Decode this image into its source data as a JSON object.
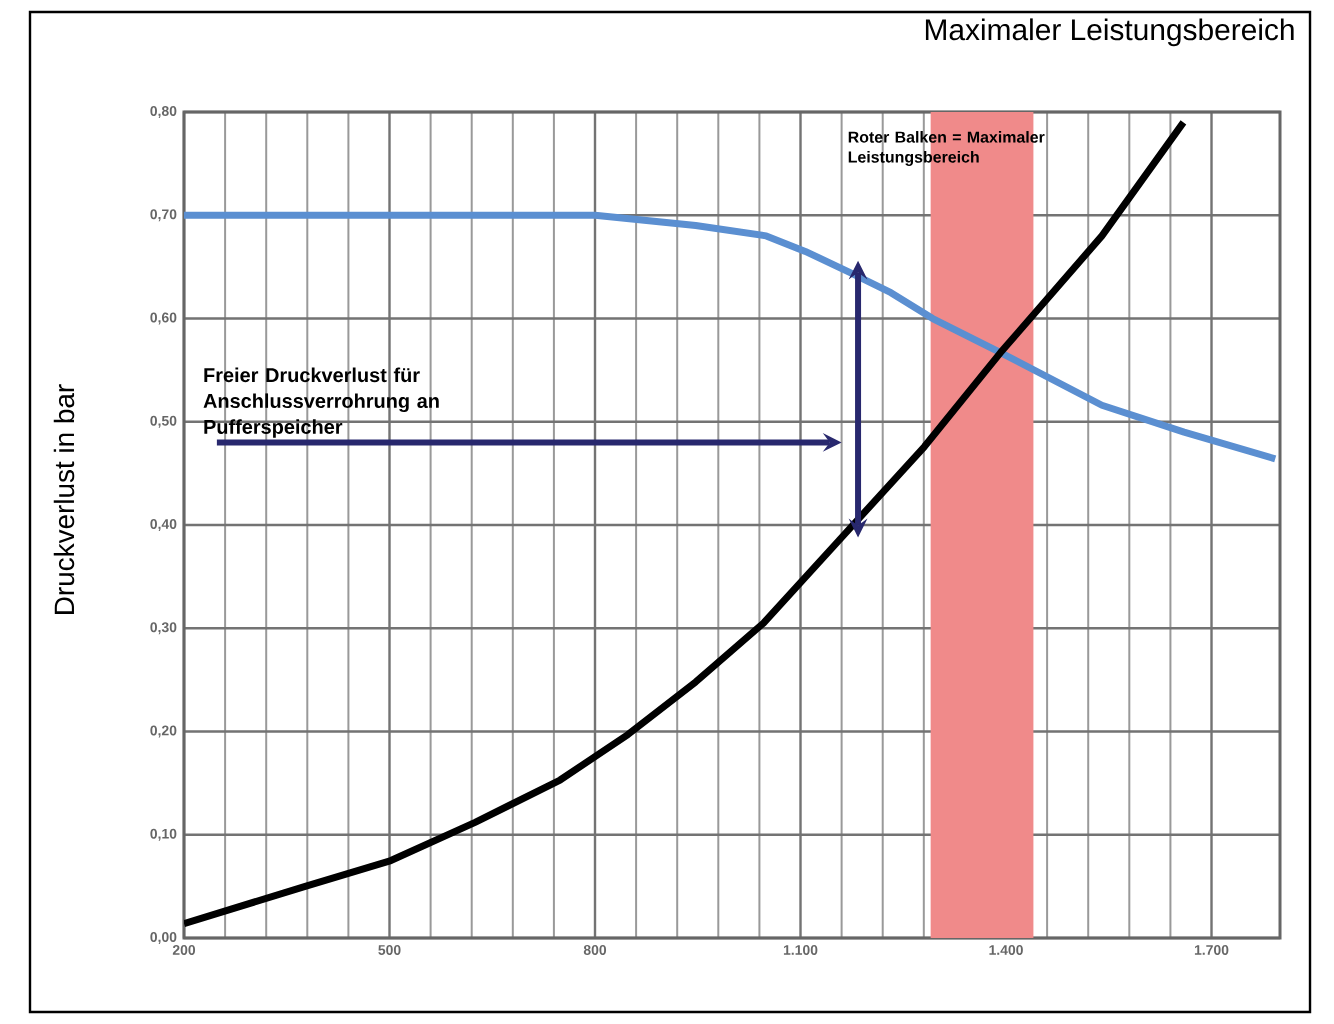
{
  "chart_data": {
    "type": "line",
    "title": "Maximaler Leistungsbereich",
    "ylabel": "Druckverlust in bar",
    "xlim": [
      200,
      1800
    ],
    "ylim": [
      0,
      0.8
    ],
    "xticks": [
      200,
      500,
      800,
      {
        "value": 1100,
        "label": "1.100"
      },
      {
        "value": 1400,
        "label": "1.400"
      },
      {
        "value": 1700,
        "label": "1.700"
      }
    ],
    "yticks": [
      {
        "value": 0,
        "label": "0,00"
      },
      {
        "value": 0.1,
        "label": "0,10"
      },
      {
        "value": 0.2,
        "label": "0,20"
      },
      {
        "value": 0.3,
        "label": "0,30"
      },
      {
        "value": 0.4,
        "label": "0,40"
      },
      {
        "value": 0.5,
        "label": "0,50"
      },
      {
        "value": 0.6,
        "label": "0,60"
      },
      {
        "value": 0.7,
        "label": "0,70"
      },
      {
        "value": 0.8,
        "label": "0,80"
      }
    ],
    "grid": true,
    "marker": "none",
    "line_style": "solid",
    "series": [
      {
        "color": "#5b8fd1",
        "x": [
          200,
          400,
          600,
          800,
          947,
          1050,
          1107,
          1171,
          1232,
          1293,
          1392,
          1540,
          1660,
          1793
        ],
        "values": [
          0.7,
          0.7,
          0.7,
          0.7,
          0.69,
          0.68,
          0.665,
          0.645,
          0.625,
          0.6,
          0.567,
          0.516,
          0.49,
          0.464
        ]
      },
      {
        "color": "#000000",
        "x": [
          200,
          377,
          502,
          625,
          749,
          848,
          947,
          1046,
          1156,
          1281,
          1392,
          1540,
          1659
        ],
        "values": [
          0.014,
          0.05,
          0.075,
          0.112,
          0.153,
          0.197,
          0.248,
          0.305,
          0.385,
          0.476,
          0.567,
          0.68,
          0.79
        ]
      }
    ],
    "bands": [
      {
        "axis": "x",
        "from": 1290,
        "to": 1440,
        "label": "Roter Balken = Maximaler Leistungsbereich",
        "color": "#f08a8a"
      }
    ],
    "annotations": [
      "Freier Druckverlust für Anschlussverrohrung an Pufferspeicher"
    ]
  }
}
